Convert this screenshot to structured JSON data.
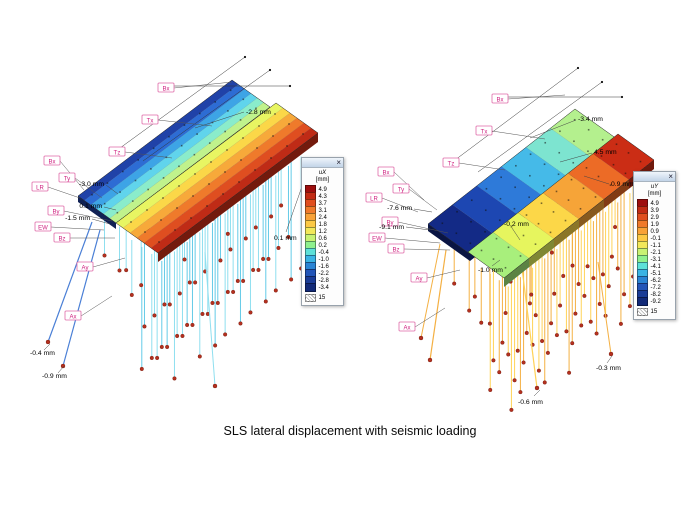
{
  "caption": "SLS lateral displacement with seismic loading",
  "legend_palette": [
    "#9e0e0e",
    "#c22b14",
    "#e04e1e",
    "#ef7a2b",
    "#f8a238",
    "#fcc945",
    "#f2e85a",
    "#c8f273",
    "#8ef08e",
    "#5ce0d8",
    "#3ab4e4",
    "#2a84d4",
    "#2255b8",
    "#1a3c96",
    "#122a78"
  ],
  "colors": {
    "pile_left": "#8fdfef",
    "pile_left_alt": "#64cbe8",
    "battered_pile_left": "#4a7fd6",
    "pile_right": "#f4b043",
    "pile_right_alt": "#ffd257",
    "pile_tip": "#b5301f",
    "tag_accent": "#cf1f7f"
  },
  "left": {
    "legend": {
      "title": "uX",
      "unit": "[mm]",
      "values": [
        "4.9",
        "4.3",
        "3.7",
        "3.1",
        "2.4",
        "1.8",
        "1.2",
        "0.6",
        "0.2",
        "-0.4",
        "-1.0",
        "-1.6",
        "-2.2",
        "-2.8",
        "-3.4"
      ],
      "footer": "15"
    },
    "tags": [
      "Bx",
      "Tx",
      "Tz",
      "Bx",
      "Ty",
      "LR",
      "By",
      "EW",
      "Bz",
      "Ay",
      "Ax"
    ],
    "measurements": [
      "-2.8 mm",
      "-3.0 mm",
      "0.1 mm",
      "-1.5 mm",
      "0.1 mm",
      "-0.4 mm",
      "-0.9 mm"
    ]
  },
  "right": {
    "legend": {
      "title": "uY",
      "unit": "[mm]",
      "values": [
        "4.9",
        "3.9",
        "2.9",
        "1.9",
        "0.9",
        "-0.1",
        "-1.1",
        "-2.1",
        "-3.1",
        "-4.1",
        "-5.1",
        "-6.2",
        "-7.2",
        "-8.2",
        "-9.2"
      ],
      "footer": "15"
    },
    "tags": [
      "Bx",
      "Tx",
      "Tz",
      "Bx",
      "Ty",
      "LR",
      "By",
      "EW",
      "Bz",
      "Ay",
      "Ax"
    ],
    "measurements": [
      "-3.4 mm",
      "4.5 mm",
      "0.9 mm",
      "-7.6 mm",
      "-9.1 mm",
      "-0.2 mm",
      "-1.0 mm",
      "-0.3 mm",
      "-0.6 mm"
    ]
  }
}
